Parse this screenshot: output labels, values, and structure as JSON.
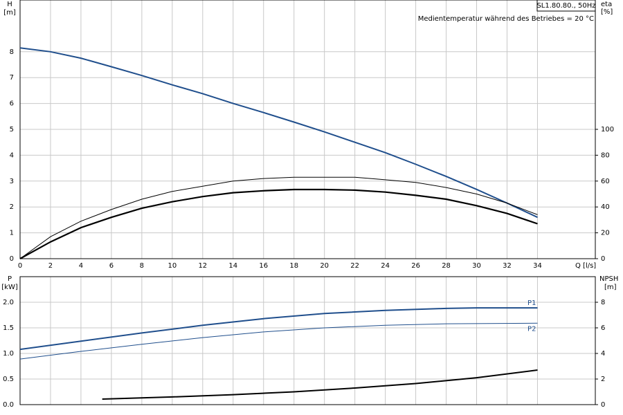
{
  "chart_data": [
    {
      "type": "line",
      "model": "SL1.80.80., 50Hz",
      "note": "Medientemperatur während des Betriebes = 20 °C",
      "y_label": "H",
      "y_unit": "[m]",
      "y2_label": "eta",
      "y2_unit": "[%]",
      "x_label": "Q [l/s]",
      "xlim": [
        0,
        37.8
      ],
      "xticks": [
        0,
        2,
        4,
        6,
        8,
        10,
        12,
        14,
        16,
        18,
        20,
        22,
        24,
        26,
        28,
        30,
        32,
        34
      ],
      "ylim": [
        0,
        10
      ],
      "yticks": [
        0,
        1,
        2,
        3,
        4,
        5,
        6,
        7,
        8
      ],
      "y2lim": [
        0,
        200
      ],
      "y2ticks": [
        0,
        20,
        40,
        60,
        80,
        100
      ],
      "grid": true,
      "series": [
        {
          "color": "#1f4e8c",
          "width": 2,
          "x": [
            0,
            2,
            4,
            6,
            8,
            10,
            12,
            14,
            16,
            18,
            20,
            22,
            24,
            26,
            28,
            30,
            32,
            34
          ],
          "values": [
            8.15,
            8.0,
            7.75,
            7.42,
            7.08,
            6.72,
            6.38,
            6.0,
            5.65,
            5.28,
            4.9,
            4.5,
            4.1,
            3.65,
            3.18,
            2.68,
            2.15,
            1.6
          ]
        },
        {
          "color": "#000000",
          "width": 1,
          "axis": "y2",
          "x": [
            0,
            2,
            4,
            6,
            8,
            10,
            12,
            14,
            16,
            18,
            20,
            22,
            24,
            26,
            28,
            30,
            32,
            34
          ],
          "values": [
            0,
            17,
            29,
            38,
            46,
            52,
            56,
            60,
            62,
            63,
            63,
            63,
            61,
            59,
            55,
            50,
            43,
            34
          ]
        },
        {
          "color": "#000000",
          "width": 2.2,
          "axis": "y2",
          "x": [
            0,
            2,
            4,
            6,
            8,
            10,
            12,
            14,
            16,
            18,
            20,
            22,
            24,
            26,
            28,
            30,
            32,
            34
          ],
          "values": [
            0,
            13,
            24,
            32,
            39,
            44,
            48,
            51,
            52.5,
            53.5,
            53.5,
            53,
            51.5,
            49,
            46,
            41,
            35,
            27
          ]
        }
      ]
    },
    {
      "type": "line",
      "y_label": "P",
      "y_unit": "[kW]",
      "y2_label": "NPSH",
      "y2_unit": "[m]",
      "xlim": [
        0,
        37.8
      ],
      "ylim": [
        0,
        2.5
      ],
      "yticks": [
        {
          "value": 0,
          "label": "0.0"
        },
        0.5,
        {
          "value": 1,
          "label": "1.0"
        },
        1.5,
        {
          "value": 2,
          "label": "2.0"
        }
      ],
      "y2lim": [
        0,
        10
      ],
      "y2ticks": [
        0,
        2,
        4,
        6,
        8
      ],
      "grid": true,
      "series": [
        {
          "name": "P1",
          "color": "#1f4e8c",
          "width": 2,
          "x": [
            0,
            4,
            8,
            12,
            16,
            20,
            24,
            28,
            30,
            34
          ],
          "values": [
            1.08,
            1.24,
            1.4,
            1.55,
            1.68,
            1.78,
            1.84,
            1.88,
            1.89,
            1.89
          ]
        },
        {
          "name": "P2",
          "color": "#1f4e8c",
          "width": 1,
          "x": [
            0,
            4,
            8,
            12,
            16,
            20,
            24,
            28,
            34
          ],
          "values": [
            0.89,
            1.04,
            1.18,
            1.31,
            1.42,
            1.5,
            1.55,
            1.58,
            1.59
          ]
        },
        {
          "color": "#000000",
          "width": 2,
          "axis": "y2",
          "x": [
            5.4,
            10,
            14,
            18,
            22,
            26,
            30,
            34
          ],
          "values": [
            0.43,
            0.6,
            0.78,
            1.0,
            1.3,
            1.65,
            2.1,
            2.7
          ]
        }
      ]
    }
  ]
}
